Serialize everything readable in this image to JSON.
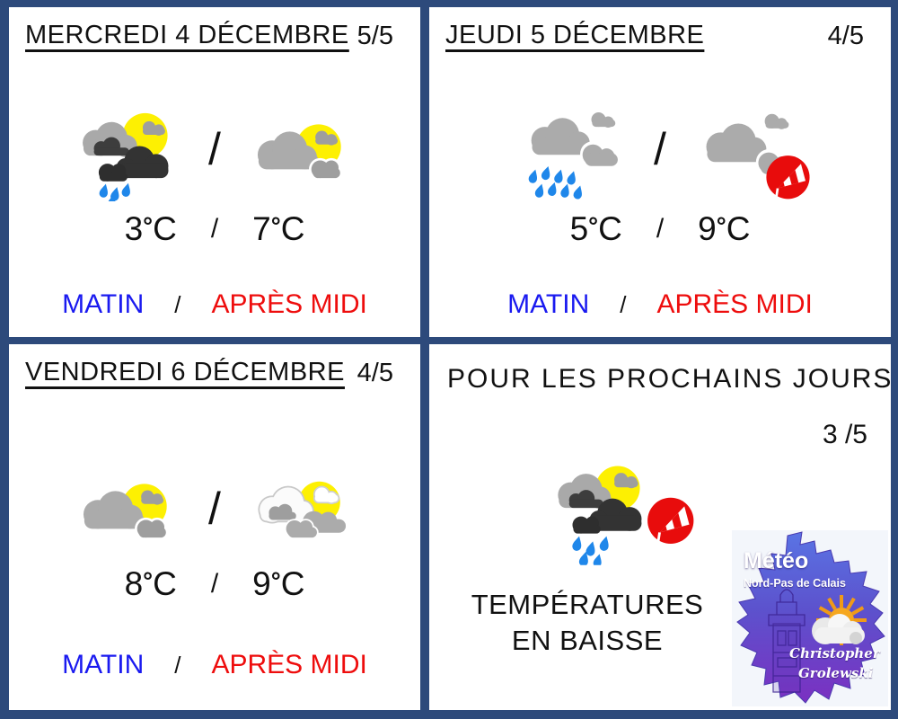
{
  "labels": {
    "morning": "MATIN",
    "afternoon": "APRÈS MIDI",
    "separator": "/",
    "degree": "°",
    "celsius": "C"
  },
  "panels": [
    {
      "title": "MERCREDI 4 DÉCEMBRE",
      "score": "5/5",
      "morning_icon": "sun-clouds-rain",
      "afternoon_icon": "sun-cloud",
      "morning_temp": "3",
      "afternoon_temp": "7"
    },
    {
      "title": "JEUDI 5 DÉCEMBRE",
      "score": "4/5",
      "morning_icon": "clouds-rain",
      "afternoon_icon": "clouds-windsock",
      "morning_temp": "5",
      "afternoon_temp": "9"
    },
    {
      "title": "VENDREDI 6 DÉCEMBRE",
      "score": "4/5",
      "morning_icon": "sun-cloud",
      "afternoon_icon": "sun-white-clouds",
      "morning_temp": "8",
      "afternoon_temp": "9"
    }
  ],
  "outlook": {
    "title": "POUR LES PROCHAINS JOURS",
    "score": "3 /5",
    "icon": "sun-clouds-rain-windsock",
    "trend_line1": "TEMPÉRATURES",
    "trend_line2": "EN BAISSE"
  },
  "logo": {
    "title": "Météo",
    "subtitle": "Nord-Pas de Calais",
    "author_line1": "Christopher",
    "author_line2": "Grolewski"
  },
  "colors": {
    "frame": "#2d4a7b",
    "morning_text": "#1a1af0",
    "afternoon_text": "#ee0d0d",
    "sun": "#fdf002",
    "rain_drop": "#1f87ea",
    "wind_badge": "#e80c0c"
  }
}
